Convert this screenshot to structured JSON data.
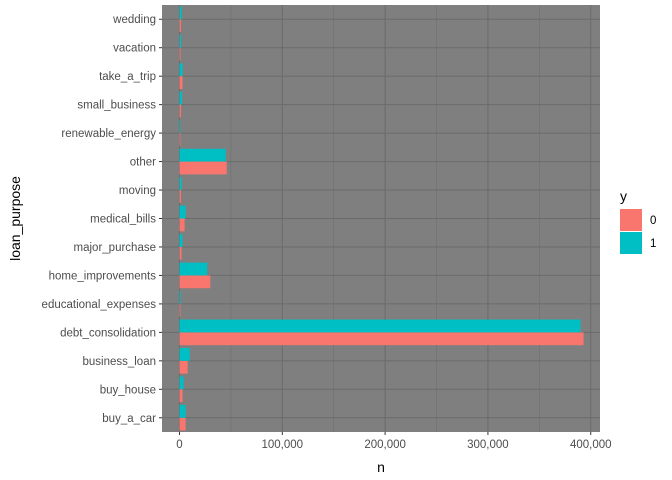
{
  "chart_data": {
    "type": "bar",
    "orientation": "horizontal",
    "xlabel": "n",
    "ylabel": "loan_purpose",
    "categories": [
      "buy_a_car",
      "buy_house",
      "business_loan",
      "debt_consolidation",
      "educational_expenses",
      "home_improvements",
      "major_purchase",
      "medical_bills",
      "moving",
      "other",
      "renewable_energy",
      "small_business",
      "take_a_trip",
      "vacation",
      "wedding"
    ],
    "series": [
      {
        "name": "0",
        "color": "#F8766D",
        "values": [
          6000,
          3000,
          8000,
          393000,
          800,
          30000,
          2000,
          5000,
          1500,
          46000,
          300,
          1500,
          3000,
          1000,
          1500
        ]
      },
      {
        "name": "1",
        "color": "#00BFC4",
        "values": [
          6000,
          4000,
          10000,
          390000,
          1000,
          27000,
          3000,
          6000,
          2000,
          45000,
          400,
          2500,
          3000,
          1500,
          2000
        ]
      }
    ],
    "xlim": [
      -17000,
      409000
    ],
    "x_ticks": [
      0,
      100000,
      200000,
      300000,
      400000
    ],
    "x_tick_labels": [
      "0",
      "100,000",
      "200,000",
      "300,000",
      "400,000"
    ],
    "grid": true,
    "legend": {
      "title": "y",
      "position": "right",
      "entries": [
        "0",
        "1"
      ]
    }
  }
}
